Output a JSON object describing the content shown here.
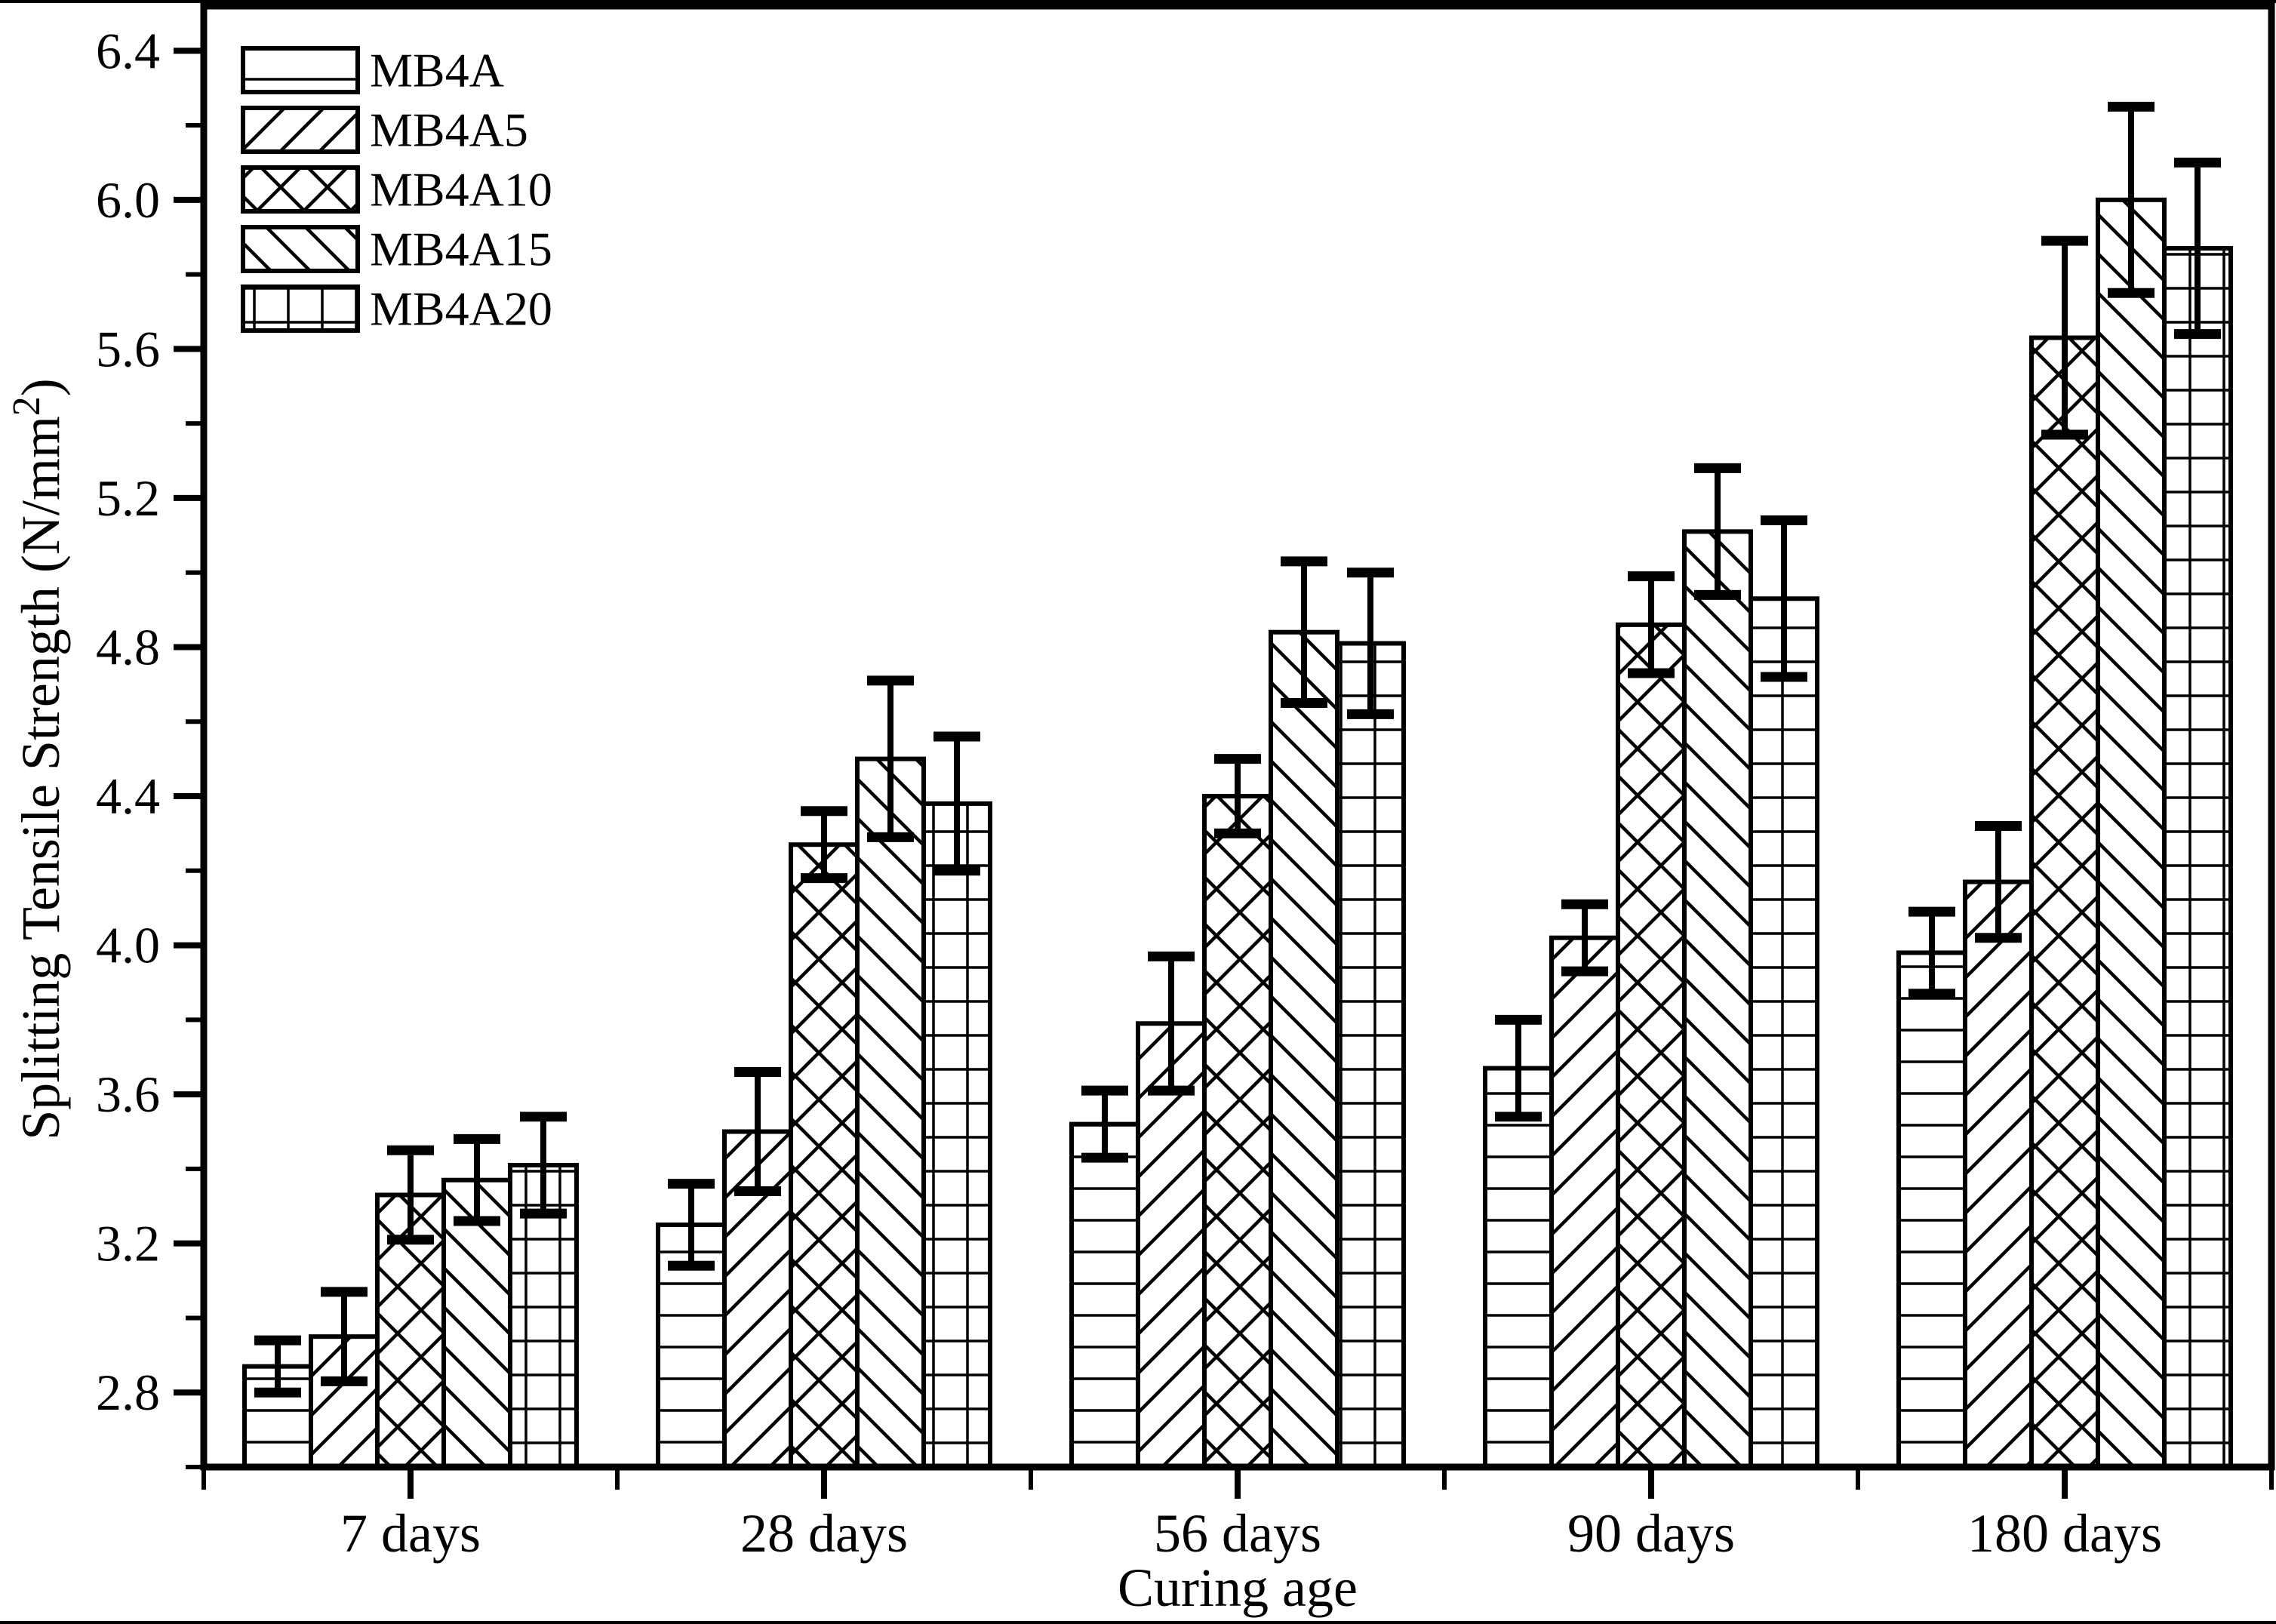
{
  "chart_data": {
    "type": "bar",
    "title": "",
    "xlabel": "Curing age",
    "ylabel": "Splitting Tensile Strength (N/mm²)",
    "categories": [
      "7 days",
      "28 days",
      "56 days",
      "90 days",
      "180 days"
    ],
    "series": [
      {
        "name": "MB4A",
        "pattern": "horizontal-lines",
        "values": [
          2.87,
          3.25,
          3.52,
          3.67,
          3.98
        ],
        "errors": [
          0.07,
          0.11,
          0.09,
          0.13,
          0.11
        ]
      },
      {
        "name": "MB4A5",
        "pattern": "diagonal-forward",
        "values": [
          2.95,
          3.5,
          3.79,
          4.02,
          4.17
        ],
        "errors": [
          0.12,
          0.16,
          0.18,
          0.09,
          0.15
        ]
      },
      {
        "name": "MB4A10",
        "pattern": "diagonal-crosshatch",
        "values": [
          3.33,
          4.27,
          4.4,
          4.86,
          5.63
        ],
        "errors": [
          0.12,
          0.09,
          0.1,
          0.13,
          0.26
        ]
      },
      {
        "name": "MB4A15",
        "pattern": "diagonal-backward",
        "values": [
          3.37,
          4.5,
          4.84,
          5.11,
          6.0
        ],
        "errors": [
          0.11,
          0.21,
          0.19,
          0.17,
          0.25
        ]
      },
      {
        "name": "MB4A20",
        "pattern": "grid",
        "values": [
          3.41,
          4.38,
          4.81,
          4.93,
          5.87
        ],
        "errors": [
          0.13,
          0.18,
          0.19,
          0.21,
          0.23
        ]
      }
    ],
    "ylim": [
      2.6,
      6.52
    ],
    "y_major_ticks": [
      2.8,
      3.2,
      3.6,
      4.0,
      4.4,
      4.8,
      5.2,
      5.6,
      6.0,
      6.4
    ],
    "y_minor_step": 0.2,
    "grid": false,
    "legend_position": "top-left",
    "bar_fill_color": "#ffffff",
    "line_color": "#000000"
  }
}
